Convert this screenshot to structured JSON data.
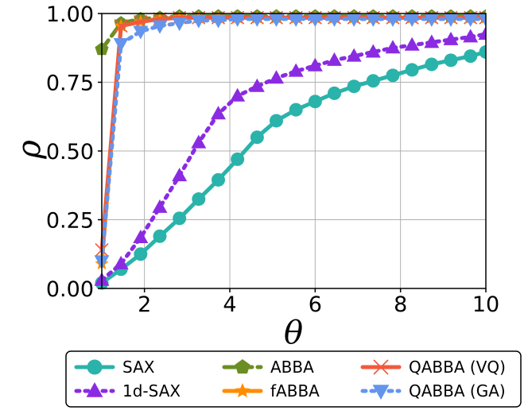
{
  "chart_data": {
    "type": "line",
    "title": "",
    "xlabel": "θ",
    "ylabel": "ρ",
    "xlim": [
      1,
      10
    ],
    "ylim": [
      0,
      1
    ],
    "grid": true,
    "legend_position": "bottom-outside",
    "xticks": [
      {
        "value": 2,
        "label": "2"
      },
      {
        "value": 4,
        "label": "4"
      },
      {
        "value": 6,
        "label": "6"
      },
      {
        "value": 8,
        "label": "8"
      },
      {
        "value": 10,
        "label": "10"
      }
    ],
    "yticks": [
      {
        "value": 0,
        "label": "0.00"
      },
      {
        "value": 0.25,
        "label": "0.25"
      },
      {
        "value": 0.5,
        "label": "0.50"
      },
      {
        "value": 0.75,
        "label": "0.75"
      },
      {
        "value": 1,
        "label": "1.00"
      }
    ],
    "series": [
      {
        "name": "SAX",
        "color": "#2ab3aa",
        "marker": "circle",
        "dash": "solid",
        "x": [
          1.0,
          1.45,
          1.91,
          2.36,
          2.82,
          3.27,
          3.73,
          4.18,
          4.64,
          5.09,
          5.55,
          6.0,
          6.45,
          6.91,
          7.36,
          7.82,
          8.27,
          8.73,
          9.18,
          9.64,
          10.0
        ],
        "y": [
          0.02,
          0.07,
          0.125,
          0.19,
          0.255,
          0.325,
          0.395,
          0.47,
          0.55,
          0.61,
          0.65,
          0.68,
          0.71,
          0.735,
          0.755,
          0.775,
          0.795,
          0.815,
          0.83,
          0.845,
          0.86
        ]
      },
      {
        "name": "1d-SAX",
        "color": "#8a2be2",
        "marker": "triangle-up",
        "dash": "dotted",
        "x": [
          1.0,
          1.45,
          1.91,
          2.36,
          2.82,
          3.27,
          3.73,
          4.18,
          4.64,
          5.09,
          5.55,
          6.0,
          6.45,
          6.91,
          7.36,
          7.82,
          8.27,
          8.73,
          9.18,
          9.64,
          10.0
        ],
        "y": [
          0.03,
          0.09,
          0.185,
          0.295,
          0.41,
          0.53,
          0.635,
          0.7,
          0.735,
          0.765,
          0.79,
          0.81,
          0.83,
          0.845,
          0.86,
          0.875,
          0.885,
          0.895,
          0.905,
          0.915,
          0.925
        ]
      },
      {
        "name": "ABBA",
        "color": "#6b8e23",
        "marker": "pentagon",
        "dash": "dashed",
        "x": [
          1.0,
          1.45,
          1.91,
          2.36,
          2.82,
          3.27,
          3.73,
          4.18,
          4.64,
          5.09,
          5.55,
          6.0,
          6.45,
          6.91,
          7.36,
          7.82,
          8.27,
          8.73,
          9.18,
          9.64,
          10.0
        ],
        "y": [
          0.87,
          0.965,
          0.98,
          0.985,
          0.99,
          0.99,
          0.99,
          0.99,
          0.99,
          0.99,
          0.99,
          0.99,
          0.99,
          0.99,
          0.99,
          0.99,
          0.99,
          0.99,
          0.99,
          0.99,
          0.99
        ]
      },
      {
        "name": "fABBA",
        "color": "#ff8c00",
        "marker": "star",
        "dash": "solid",
        "x": [
          1.0,
          1.45,
          1.91,
          2.36,
          2.82,
          3.27,
          3.73,
          4.18,
          4.64,
          5.09,
          5.55,
          6.0,
          6.45,
          6.91,
          7.36,
          7.82,
          8.27,
          8.73,
          9.18,
          9.64,
          10.0
        ],
        "y": [
          0.09,
          0.955,
          0.97,
          0.98,
          0.985,
          0.985,
          0.985,
          0.985,
          0.985,
          0.985,
          0.985,
          0.985,
          0.985,
          0.985,
          0.985,
          0.985,
          0.985,
          0.985,
          0.985,
          0.985,
          0.985
        ]
      },
      {
        "name": "QABBA (VQ)",
        "color": "#f05a3c",
        "marker": "x",
        "dash": "solid",
        "x": [
          1.0,
          1.45,
          1.91,
          2.36,
          2.82,
          3.27,
          3.73,
          4.18,
          4.64,
          5.09,
          5.55,
          6.0,
          6.45,
          6.91,
          7.36,
          7.82,
          8.27,
          8.73,
          9.18,
          9.64,
          10.0
        ],
        "y": [
          0.14,
          0.955,
          0.97,
          0.98,
          0.985,
          0.985,
          0.985,
          0.985,
          0.985,
          0.985,
          0.985,
          0.985,
          0.985,
          0.985,
          0.985,
          0.985,
          0.985,
          0.985,
          0.985,
          0.985,
          0.985
        ]
      },
      {
        "name": "QABBA (GA)",
        "color": "#6495ed",
        "marker": "triangle-down",
        "dash": "dotted",
        "x": [
          1.0,
          1.45,
          1.91,
          2.36,
          2.82,
          3.27,
          3.73,
          4.18,
          4.64,
          5.09,
          5.55,
          6.0,
          6.45,
          6.91,
          7.36,
          7.82,
          8.27,
          8.73,
          9.18,
          9.64,
          10.0
        ],
        "y": [
          0.1,
          0.89,
          0.935,
          0.955,
          0.965,
          0.975,
          0.975,
          0.98,
          0.98,
          0.98,
          0.98,
          0.98,
          0.98,
          0.98,
          0.98,
          0.98,
          0.98,
          0.98,
          0.98,
          0.98,
          0.98
        ]
      }
    ]
  }
}
